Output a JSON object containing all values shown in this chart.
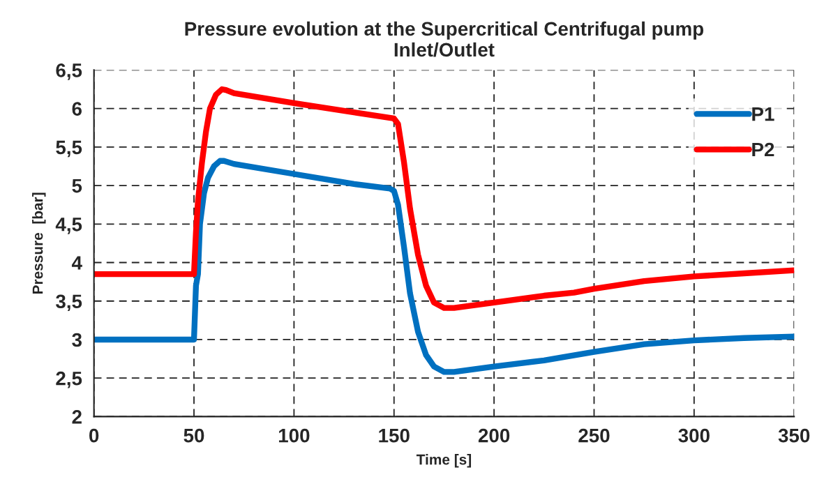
{
  "chart_data": {
    "type": "line",
    "title": "Pressure evolution at the Supercritical Centrifugal pump\nInlet/Outlet",
    "xlabel": "Time [s]",
    "ylabel": "Pressure  [bar]",
    "series": [
      {
        "name": "P1",
        "color": "#0070c0",
        "x": [
          0,
          50,
          51,
          52,
          53,
          55,
          57,
          60,
          63,
          65,
          70,
          100,
          130,
          148,
          150,
          152,
          155,
          158,
          162,
          166,
          170,
          175,
          180,
          200,
          225,
          250,
          275,
          300,
          325,
          350
        ],
        "values": [
          3.0,
          3.0,
          3.7,
          3.85,
          4.5,
          4.9,
          5.1,
          5.25,
          5.32,
          5.32,
          5.28,
          5.15,
          5.02,
          4.96,
          4.93,
          4.75,
          4.2,
          3.6,
          3.1,
          2.8,
          2.65,
          2.58,
          2.58,
          2.65,
          2.73,
          2.84,
          2.94,
          2.99,
          3.02,
          3.04
        ]
      },
      {
        "name": "P2",
        "color": "#ff0000",
        "x": [
          0,
          50,
          51,
          52,
          54,
          56,
          58,
          61,
          64,
          66,
          70,
          100,
          130,
          150,
          152,
          155,
          158,
          162,
          166,
          170,
          175,
          180,
          200,
          225,
          240,
          250,
          275,
          300,
          325,
          350
        ],
        "values": [
          3.85,
          3.85,
          4.4,
          4.8,
          5.3,
          5.7,
          6.0,
          6.18,
          6.25,
          6.24,
          6.2,
          6.07,
          5.95,
          5.87,
          5.8,
          5.3,
          4.7,
          4.1,
          3.7,
          3.48,
          3.41,
          3.41,
          3.48,
          3.57,
          3.61,
          3.66,
          3.76,
          3.82,
          3.86,
          3.9
        ]
      }
    ],
    "xlim": [
      0,
      350
    ],
    "xticks": [
      0,
      50,
      100,
      150,
      200,
      250,
      300,
      350
    ],
    "ylim": [
      2,
      6.5
    ],
    "yticks": [
      2,
      {
        "value": 2.5,
        "label": "2,5"
      },
      3,
      {
        "value": 3.5,
        "label": "3,5"
      },
      4,
      {
        "value": 4.5,
        "label": "4,5"
      },
      5,
      {
        "value": 5.5,
        "label": "5,5"
      },
      6,
      {
        "value": 6.5,
        "label": "6,5"
      }
    ],
    "grid": true,
    "legend": "top right",
    "marker": "none",
    "line_style": "solid"
  }
}
